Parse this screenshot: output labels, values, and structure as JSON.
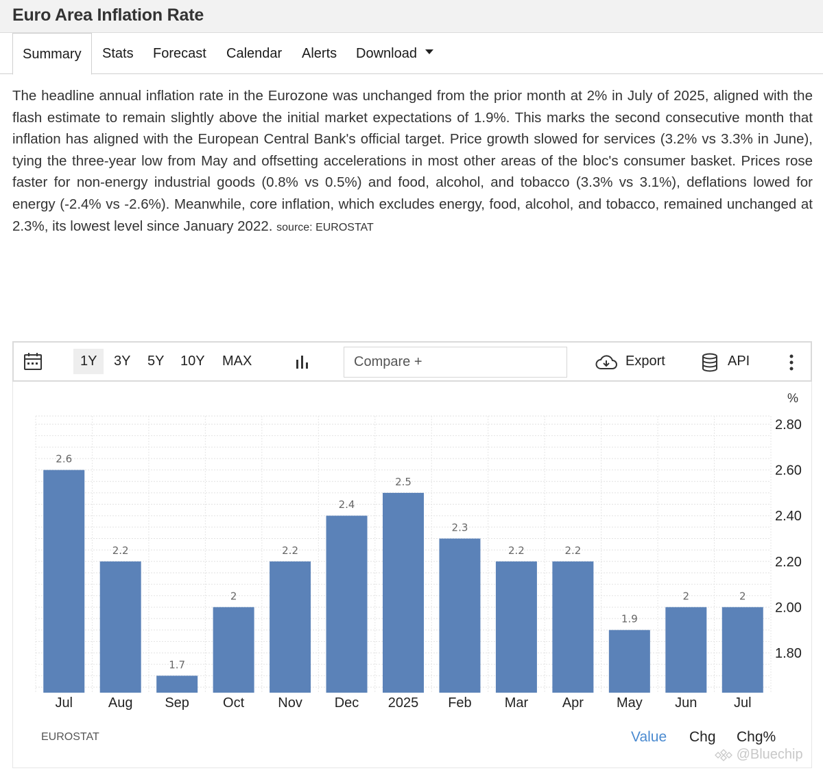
{
  "page": {
    "title": "Euro Area Inflation Rate"
  },
  "tabs": [
    {
      "label": "Summary"
    },
    {
      "label": "Stats"
    },
    {
      "label": "Forecast"
    },
    {
      "label": "Calendar"
    },
    {
      "label": "Alerts"
    },
    {
      "label": "Download"
    }
  ],
  "description": {
    "text": "The headline annual inflation rate in the Eurozone was unchanged from the prior month at 2% in July of 2025, aligned with the flash estimate to remain slightly above the initial market expectations of 1.9%. This marks the second consecutive month that inflation has aligned with the European Central Bank's official target. Price growth slowed for services (3.2% vs 3.3% in June), tying the three-year low from May and offsetting accelerations in most other areas of the bloc's consumer basket. Prices rose faster for non-energy industrial goods (0.8% vs 0.5%) and food, alcohol, and tobacco (3.3% vs 3.1%), deflations lowed for energy (-2.4% vs -2.6%). Meanwhile, core inflation, which excludes energy, food, alcohol, and tobacco, remained unchanged at 2.3%, its lowest level since January 2022.",
    "source": "source: EUROSTAT"
  },
  "toolbar": {
    "ranges": [
      "1Y",
      "3Y",
      "5Y",
      "10Y",
      "MAX"
    ],
    "active_range": "1Y",
    "compare_label": "Compare +",
    "export_label": "Export",
    "api_label": "API",
    "icons": [
      "calendar-icon",
      "bar-chart-icon",
      "cloud-download-icon",
      "database-icon",
      "more-vertical-icon"
    ]
  },
  "chart_data": {
    "type": "bar",
    "categories": [
      "Jul",
      "Aug",
      "Sep",
      "Oct",
      "Nov",
      "Dec",
      "2025",
      "Feb",
      "Mar",
      "Apr",
      "May",
      "Jun",
      "Jul"
    ],
    "values": [
      2.6,
      2.2,
      1.7,
      2,
      2.2,
      2.4,
      2.5,
      2.3,
      2.2,
      2.2,
      1.9,
      2,
      2
    ],
    "data_labels": [
      "2.6",
      "2.2",
      "1.7",
      "2",
      "2.2",
      "2.4",
      "2.5",
      "2.3",
      "2.2",
      "2.2",
      "1.9",
      "2",
      "2"
    ],
    "unit": "%",
    "y_ticks": [
      "2.80",
      "2.60",
      "2.40",
      "2.20",
      "2.00",
      "1.80"
    ],
    "ylim": [
      1.6,
      2.8
    ],
    "y_axis_side": "right",
    "grid": true,
    "bar_color": "#5b82b8"
  },
  "footer": {
    "source": "EUROSTAT",
    "views": [
      "Value",
      "Chg",
      "Chg%"
    ],
    "active_view": "Value"
  },
  "watermark": {
    "text": "@Bluechip"
  },
  "colors": {
    "accent": "#4a8ad0",
    "bar": "#5b82b8",
    "title_bar_bg": "#f2f2f2"
  }
}
